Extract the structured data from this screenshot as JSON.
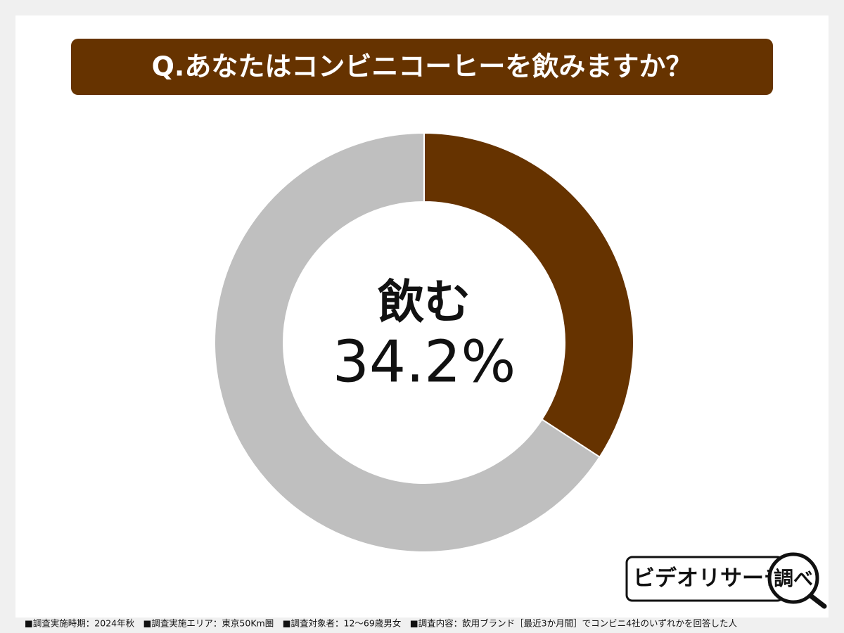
{
  "chart_data": {
    "type": "donut",
    "title": "Q.あなたはコンビニコーヒーを飲みますか？",
    "categories": [
      "飲む",
      null
    ],
    "values": [
      34.2,
      65.8
    ],
    "value_labels": [
      "34.2%",
      null
    ],
    "colors": [
      "#663300",
      "#bfbfbf"
    ],
    "start_angle": 0,
    "direction": "clockwise"
  },
  "footnote": "■調査実施時期：2024年秋　■調査実施エリア：東京50Km圏　■調査対象者：12～69歳男女　■調査内容：飲用ブランド［最近3か月間］でコンビニ4社のいずれかを回答した人",
  "logo": {
    "text": "ビデオリサーチ",
    "badge": "調べ"
  }
}
